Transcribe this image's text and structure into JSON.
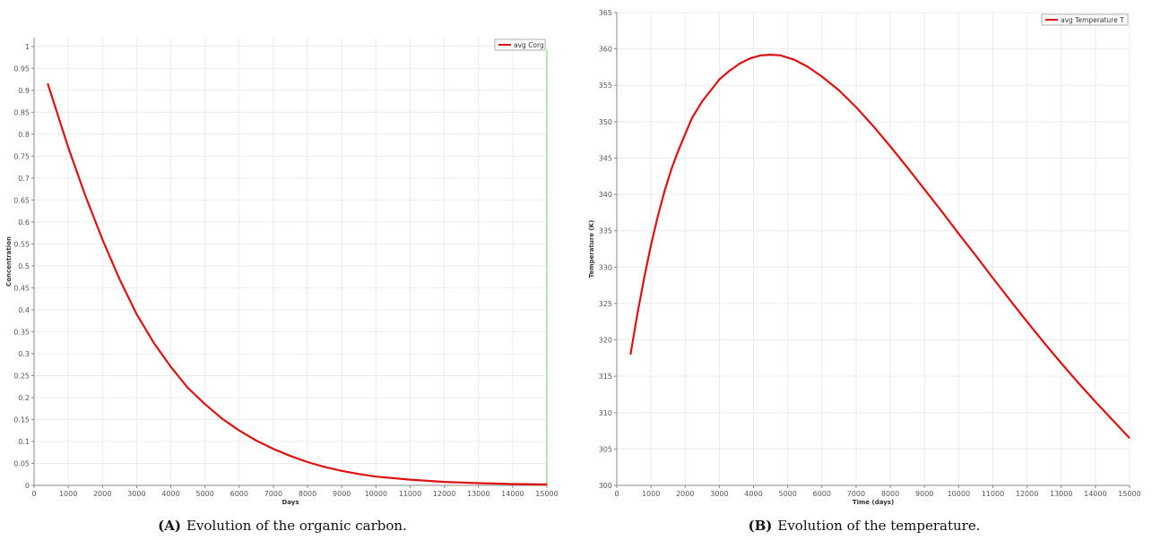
{
  "chart_data": [
    {
      "id": "A",
      "type": "line",
      "title": "",
      "xlabel": "Days",
      "ylabel": "Concentration",
      "xlim": [
        0,
        15000
      ],
      "ylim": [
        0,
        1.02
      ],
      "xticks": [
        0,
        1000,
        2000,
        3000,
        4000,
        5000,
        6000,
        7000,
        8000,
        9000,
        10000,
        11000,
        12000,
        13000,
        14000,
        15000
      ],
      "yticks": [
        0,
        0.05,
        0.1,
        0.15,
        0.2,
        0.25,
        0.3,
        0.35,
        0.4,
        0.45,
        0.5,
        0.55,
        0.6,
        0.65,
        0.7,
        0.75,
        0.8,
        0.85,
        0.9,
        0.95,
        1
      ],
      "grid": true,
      "legend_position": "top-right",
      "marker_line_x": 15000,
      "marker_line_color": "#8fd27f",
      "series": [
        {
          "name": "avg Corg",
          "color": "#dd1111",
          "x": [
            400,
            1000,
            1500,
            2000,
            2500,
            3000,
            3500,
            4000,
            4500,
            5000,
            5500,
            6000,
            6500,
            7000,
            7500,
            8000,
            8500,
            9000,
            9500,
            10000,
            11000,
            12000,
            13000,
            14000,
            15000
          ],
          "y": [
            0.915,
            0.77,
            0.66,
            0.56,
            0.47,
            0.39,
            0.325,
            0.27,
            0.222,
            0.185,
            0.152,
            0.125,
            0.102,
            0.083,
            0.067,
            0.053,
            0.042,
            0.033,
            0.026,
            0.02,
            0.013,
            0.008,
            0.005,
            0.003,
            0.002
          ]
        }
      ]
    },
    {
      "id": "B",
      "type": "line",
      "title": "",
      "xlabel": "Time (days)",
      "ylabel": "Temperature (K)",
      "xlim": [
        0,
        15000
      ],
      "ylim": [
        300,
        365
      ],
      "xticks": [
        0,
        1000,
        2000,
        3000,
        4000,
        5000,
        6000,
        7000,
        8000,
        9000,
        10000,
        11000,
        12000,
        13000,
        14000,
        15000
      ],
      "yticks": [
        300,
        305,
        310,
        315,
        320,
        325,
        330,
        335,
        340,
        345,
        350,
        355,
        360,
        365
      ],
      "grid": true,
      "legend_position": "top-right",
      "series": [
        {
          "name": "avg Temperature T",
          "color": "#dd1111",
          "x": [
            400,
            600,
            800,
            1000,
            1200,
            1400,
            1600,
            1800,
            2000,
            2200,
            2500,
            2800,
            3000,
            3300,
            3600,
            3900,
            4200,
            4500,
            4800,
            5200,
            5600,
            6000,
            6500,
            7000,
            7500,
            8000,
            8500,
            9000,
            9500,
            10000,
            10500,
            11000,
            11500,
            12000,
            12500,
            13000,
            13500,
            14000,
            14500,
            15000
          ],
          "y": [
            318,
            323.5,
            328.5,
            333,
            337,
            340.5,
            343.5,
            346,
            348.3,
            350.5,
            352.8,
            354.6,
            355.8,
            357,
            358,
            358.7,
            359.1,
            359.2,
            359.1,
            358.5,
            357.5,
            356.2,
            354.3,
            352,
            349.4,
            346.6,
            343.7,
            340.7,
            337.7,
            334.6,
            331.6,
            328.5,
            325.5,
            322.5,
            319.6,
            316.8,
            314.1,
            311.5,
            309,
            306.5
          ]
        }
      ]
    }
  ],
  "captions": {
    "A": {
      "tag": "(A)",
      "text": "Evolution of the organic carbon."
    },
    "B": {
      "tag": "(B)",
      "text": "Evolution of the temperature."
    }
  }
}
